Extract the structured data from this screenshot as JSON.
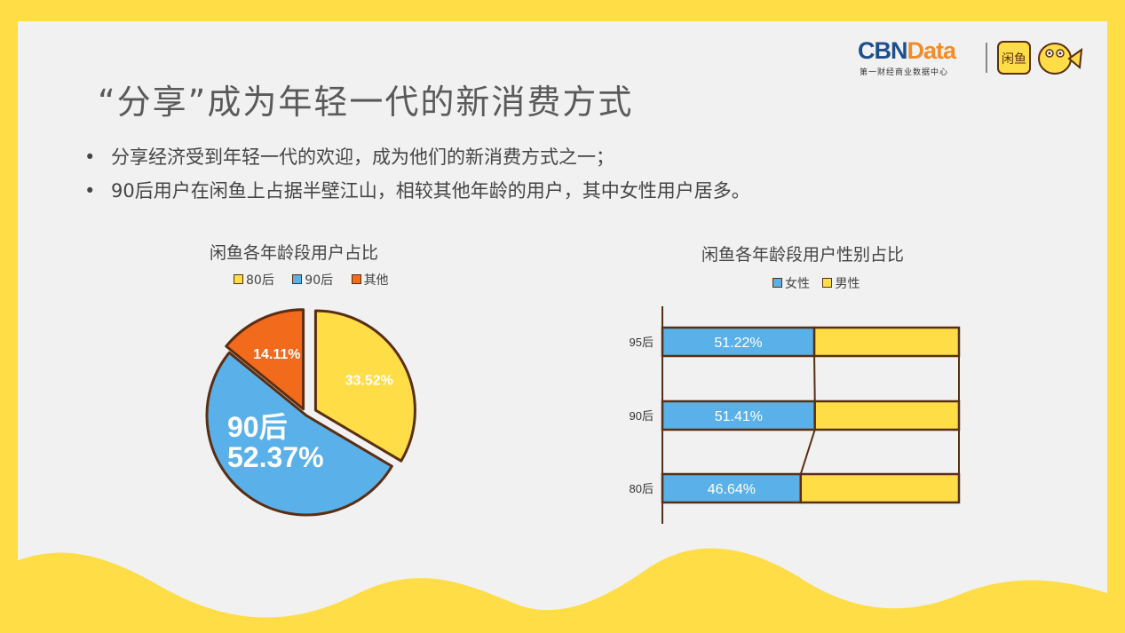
{
  "slide": {
    "title": "“分享”成为年轻一代的新消费方式",
    "bullets": [
      "分享经济受到年轻一代的欢迎，成为他们的新消费方式之一；",
      "90后用户在闲鱼上占据半壁江山，相较其他年龄的用户，其中女性用户居多。"
    ],
    "bullet_symbol": "•",
    "logo": {
      "brand_a": "CBN",
      "brand_b": "Data",
      "brand_sub": "第一财经商业数据中心",
      "app_name": "闲鱼"
    }
  },
  "colors": {
    "yellow": "#fedd46",
    "blue": "#5ab0e8",
    "orange": "#f26a1b",
    "outline": "#5a2e12",
    "panel": "#f1f1f1"
  },
  "chart_data": [
    {
      "type": "pie",
      "title": "闲鱼各年龄段用户占比",
      "legend": [
        "80后",
        "90后",
        "其他"
      ],
      "slices": [
        {
          "label": "80后",
          "value": 33.52,
          "display": "33.52%",
          "color": "#fedd46"
        },
        {
          "label": "90后",
          "value": 52.37,
          "display": "52.37%",
          "color": "#5ab0e8"
        },
        {
          "label": "其他",
          "value": 14.11,
          "display": "14.11%",
          "color": "#f26a1b"
        }
      ],
      "callout": {
        "label": "90后",
        "value": "52.37%"
      }
    },
    {
      "type": "bar",
      "title": "闲鱼各年龄段用户性别占比",
      "stacked": true,
      "orientation": "horizontal",
      "normalized_to": 100,
      "categories": [
        "95后",
        "90后",
        "80后"
      ],
      "series": [
        {
          "name": "女性",
          "values": [
            51.22,
            51.41,
            46.64
          ],
          "labels": [
            "51.22%",
            "51.41%",
            "46.64%"
          ],
          "color": "#5ab0e8"
        },
        {
          "name": "男性",
          "values": [
            48.78,
            48.59,
            53.36
          ],
          "color": "#fedd46"
        }
      ],
      "legend": [
        "女性",
        "男性"
      ]
    }
  ]
}
